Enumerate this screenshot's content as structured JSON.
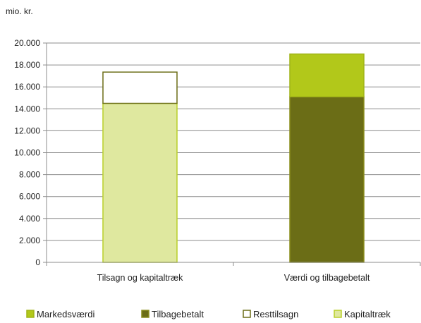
{
  "chart_data": {
    "type": "bar",
    "stacked": true,
    "unit_label": "mio. kr.",
    "categories": [
      "Tilsagn og kapitaltræk",
      "Værdi og tilbagebetalt"
    ],
    "yticks": [
      "0",
      "2.000",
      "4.000",
      "6.000",
      "8.000",
      "10.000",
      "12.000",
      "14.000",
      "16.000",
      "18.000",
      "20.000"
    ],
    "ylim": [
      0,
      20000
    ],
    "grid": true,
    "legend_position": "bottom",
    "series": [
      {
        "name": "Kapitaltræk",
        "values": [
          14500,
          0
        ],
        "color": "#dfe89f",
        "stroke": "#b9cf29"
      },
      {
        "name": "Resttilsagn",
        "values": [
          2850,
          0
        ],
        "color": "#ffffff",
        "stroke": "#6b6d16"
      },
      {
        "name": "Tilbagebetalt",
        "values": [
          0,
          15100
        ],
        "color": "#6b6d16",
        "stroke": "#8a8d1c"
      },
      {
        "name": "Markedsværdi",
        "values": [
          0,
          3900
        ],
        "color": "#b2c81a",
        "stroke": "#a0b418"
      }
    ],
    "legend_order": [
      "Markedsværdi",
      "Tilbagebetalt",
      "Resttilsagn",
      "Kapitaltræk"
    ]
  }
}
